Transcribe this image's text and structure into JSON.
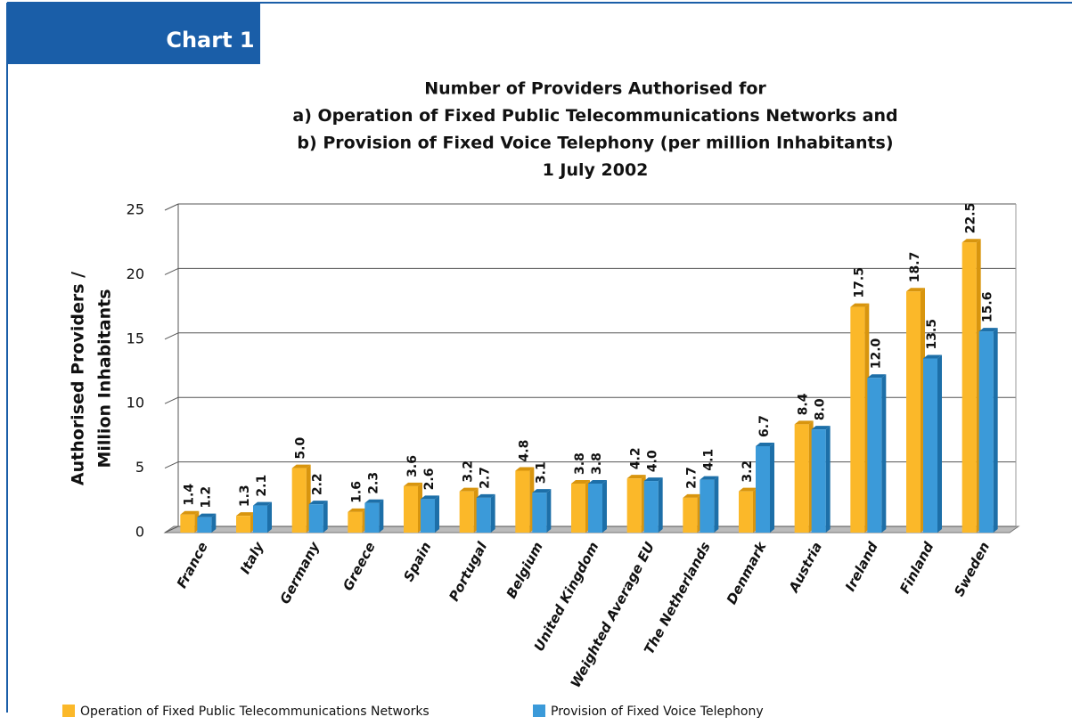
{
  "chart_data": {
    "type": "bar3d",
    "label": "Chart 1",
    "title": [
      "Number of Providers Authorised for",
      "a) Operation of Fixed Public Telecommunications Networks and",
      "b) Provision of Fixed Voice Telephony (per million Inhabitants)",
      "1 July 2002"
    ],
    "ylabel": [
      "Authorised Providers /",
      "Million Inhabitants"
    ],
    "categories": [
      "France",
      "Italy",
      "Germany",
      "Greece",
      "Spain",
      "Portugal",
      "Belgium",
      "United Kingdom",
      "Weighted Average EU",
      "The Netherlands",
      "Denmark",
      "Austria",
      "Ireland",
      "Finland",
      "Sweden"
    ],
    "series": [
      {
        "name": "Operation of Fixed Public Telecommunications Networks",
        "color": "#fbb829",
        "side": "#d8950e",
        "values": [
          1.4,
          1.3,
          5.0,
          1.6,
          3.6,
          3.2,
          4.8,
          3.8,
          4.2,
          2.7,
          3.2,
          8.4,
          17.5,
          18.7,
          22.5
        ],
        "value_labels": [
          "1.4",
          "1.3",
          "5.0",
          "1.6",
          "3.6",
          "3.2",
          "4.8",
          "3.8",
          "4.2",
          "2.7",
          "3.2",
          "8.4",
          "17.5",
          "18.7",
          "22.5"
        ]
      },
      {
        "name": "Provision of Fixed Voice Telephony",
        "color": "#3b9ad9",
        "side": "#1d6fa8",
        "values": [
          1.2,
          2.1,
          2.2,
          2.3,
          2.6,
          2.7,
          3.1,
          3.8,
          4.0,
          4.1,
          6.7,
          8.0,
          12.0,
          13.5,
          15.6
        ],
        "value_labels": [
          "1.2",
          "2.1",
          "2.2",
          "2.3",
          "2.6",
          "2.7",
          "3.1",
          "3.8",
          "4.0",
          "4.1",
          "6.7",
          "8.0",
          "12.0",
          "13.5",
          "15.6"
        ]
      }
    ],
    "ylim": [
      0,
      25
    ],
    "yticks": [
      0,
      5,
      10,
      15,
      20,
      25
    ],
    "grid": true
  }
}
